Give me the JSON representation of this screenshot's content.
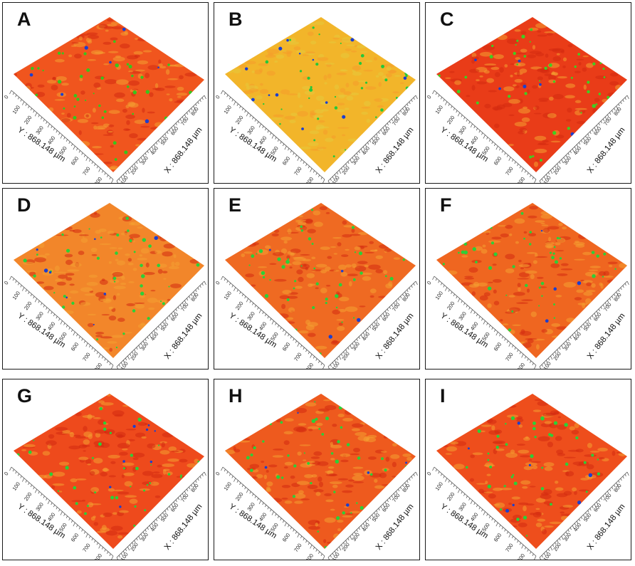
{
  "panels": [
    {
      "label": "A",
      "surface_color": "#f0551e",
      "speckle_color": "#37c51c",
      "ystrong": 0.55
    },
    {
      "label": "B",
      "surface_color": "#f2b52a",
      "speckle_color": "#24c83a",
      "ystrong": 0.25
    },
    {
      "label": "C",
      "surface_color": "#e93c18",
      "speckle_color": "#3fcf22",
      "ystrong": 0.5
    },
    {
      "label": "D",
      "surface_color": "#f2862a",
      "speckle_color": "#2bd038",
      "ystrong": 0.5
    },
    {
      "label": "E",
      "surface_color": "#ef6a22",
      "speckle_color": "#2bd038",
      "ystrong": 0.5
    },
    {
      "label": "F",
      "surface_color": "#ef6620",
      "speckle_color": "#2bd038",
      "ystrong": 0.5
    },
    {
      "label": "G",
      "surface_color": "#ee4a1c",
      "speckle_color": "#2bd038",
      "ystrong": 0.5
    },
    {
      "label": "H",
      "surface_color": "#ee5a1e",
      "speckle_color": "#2bd038",
      "ystrong": 0.5
    },
    {
      "label": "I",
      "surface_color": "#ee4e1c",
      "speckle_color": "#2bd038",
      "ystrong": 0.5
    }
  ],
  "axes": {
    "y_title": "Y : 868.148 µm",
    "x_title": "X : 868.148 µm",
    "y_ticks": [
      "0",
      "100",
      "200",
      "300",
      "400",
      "500",
      "600",
      "700",
      "800"
    ],
    "x_ticks": [
      "0",
      "100",
      "200",
      "300",
      "400",
      "500",
      "600",
      "700",
      "800"
    ]
  }
}
